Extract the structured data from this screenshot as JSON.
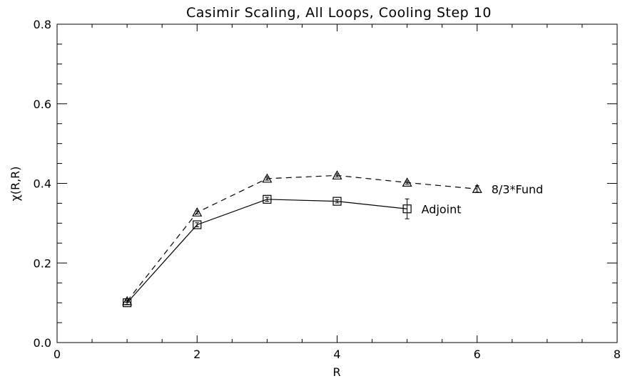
{
  "chart_data": {
    "type": "line",
    "title": "Casimir Scaling, All Loops, Cooling Step 10",
    "xlabel": "R",
    "ylabel": "χ(R,R)",
    "xlim": [
      0,
      8
    ],
    "ylim": [
      0,
      0.8
    ],
    "x_ticks": [
      0,
      2,
      4,
      6,
      8
    ],
    "y_ticks": [
      0.0,
      0.2,
      0.4,
      0.6,
      0.8
    ],
    "x_tick_labels": [
      "0",
      "2",
      "4",
      "6",
      "8"
    ],
    "y_tick_labels": [
      "0.0",
      "0.2",
      "0.4",
      "0.6",
      "0.8"
    ],
    "x_minor_step": 0.5,
    "y_minor_step": 0.05,
    "grid": false,
    "legend": "inline labels at series ends",
    "series": [
      {
        "name": "Adjoint",
        "marker": "square",
        "line_style": "solid",
        "color": "#000000",
        "x": [
          1,
          2,
          3,
          4,
          5
        ],
        "y": [
          0.1,
          0.296,
          0.36,
          0.355,
          0.336
        ],
        "err": [
          0.004,
          0.005,
          0.005,
          0.004,
          0.025
        ]
      },
      {
        "name": "8/3*Fund",
        "marker": "triangle",
        "line_style": "dashed",
        "color": "#000000",
        "x": [
          1,
          2,
          3,
          4,
          5,
          6
        ],
        "y": [
          0.104,
          0.327,
          0.412,
          0.42,
          0.402,
          0.386
        ],
        "err": [
          0.003,
          0.004,
          0.004,
          0.004,
          0.004,
          0.008
        ]
      }
    ]
  }
}
